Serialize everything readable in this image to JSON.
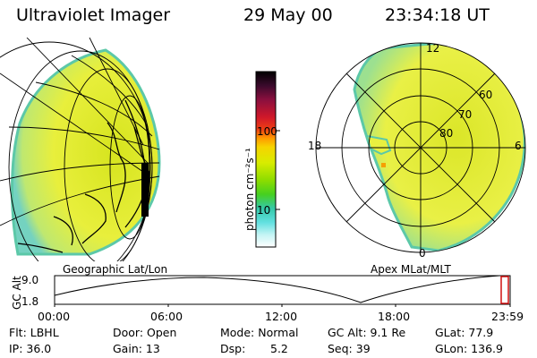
{
  "header": {
    "instrument": "Ultraviolet Imager",
    "date": "29 May 00",
    "time": "23:34:18 UT"
  },
  "left_panel": {
    "caption": "Geographic Lat/Lon"
  },
  "right_panel": {
    "caption": "Apex MLat/MLT",
    "mlt_labels": {
      "top": "12",
      "left": "18",
      "right": "6",
      "bottom": "0"
    },
    "lat_labels": [
      "60",
      "70",
      "80"
    ]
  },
  "colorbar": {
    "unit_label": "photon cm⁻²s⁻¹",
    "ticks": [
      "100",
      "10"
    ],
    "colors": [
      "#000000",
      "#3a0a2c",
      "#6b0f3e",
      "#9c0f3c",
      "#c8102c",
      "#e83218",
      "#f56a08",
      "#ffa400",
      "#f0d400",
      "#d8ec00",
      "#9fe200",
      "#5ad410",
      "#3cc890",
      "#44d6d0",
      "#9ef0f0",
      "#e0f8f8",
      "#ffffff"
    ]
  },
  "timeline": {
    "axis_label": "GC Alt",
    "y_ticks": [
      "9.0",
      "1.8"
    ],
    "x_ticks": [
      "00:00",
      "06:00",
      "12:00",
      "18:00",
      "23:59"
    ],
    "marker_color": "#d01010"
  },
  "info": {
    "row1": {
      "filter": "Flt: LBHL",
      "door": "Door: Open",
      "mode": "Mode: Normal",
      "gc_alt": "GC Alt: 9.1 Re",
      "glat": "GLat:  77.9"
    },
    "row2": {
      "ip": "IP: 36.0",
      "gain": "Gain: 13",
      "dsp": "Dsp:",
      "dsp_value": "5.2",
      "seq": "Seq: 39",
      "glon": "GLon: 136.9"
    }
  },
  "colors": {
    "aurora_fill": "#e6ee40",
    "aurora_core": "#c8d820",
    "aurora_edge": "#5cc8a8",
    "land": "#000000"
  }
}
